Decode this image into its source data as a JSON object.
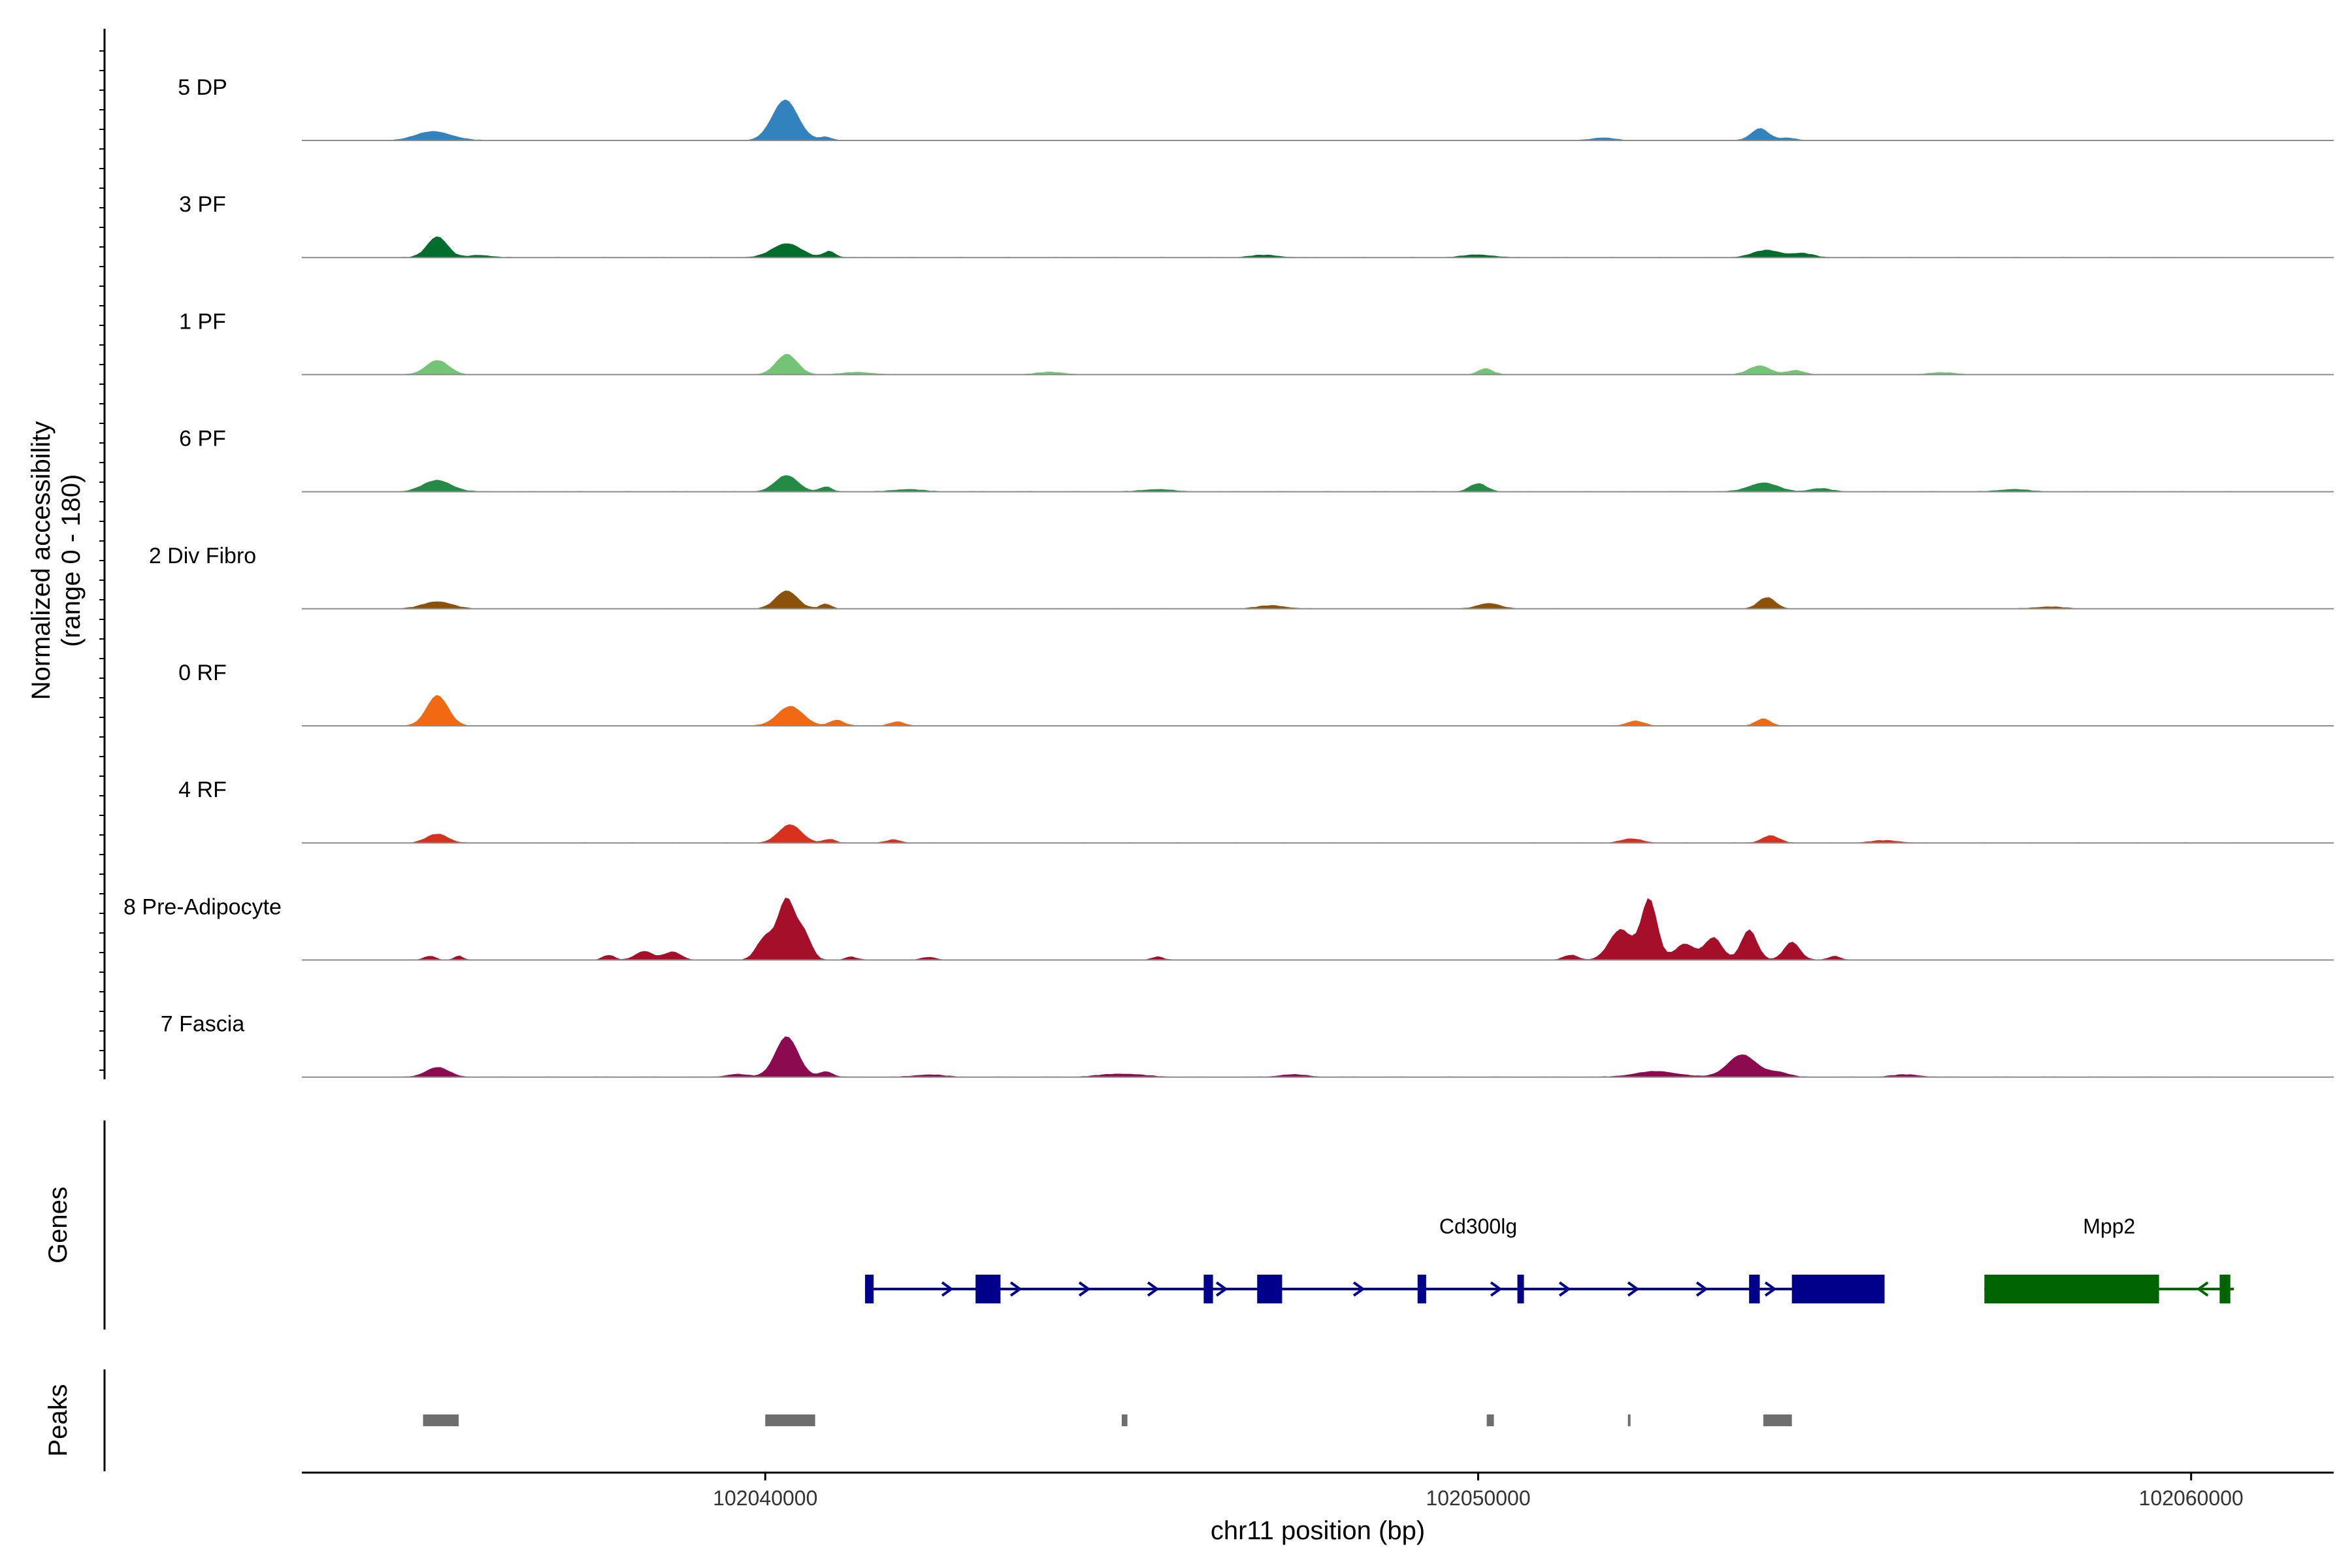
{
  "chart_data": {
    "type": "area",
    "title": "",
    "ylabel_line1": "Normalized accessibility",
    "ylabel_line2": "(range 0 - 180)",
    "y_range": [
      0,
      180
    ],
    "xlabel": "chr11 position (bp)",
    "xlim": [
      102033500,
      102062000
    ],
    "x_ticks": [
      102040000,
      102050000,
      102060000
    ],
    "x_tick_labels": [
      "102040000",
      "102050000",
      "102060000"
    ],
    "track_panel_label": "Genes",
    "peak_panel_label": "Peaks",
    "tracks": [
      {
        "name": "5 DP",
        "color": "#3182BD",
        "peaks": [
          [
            102035350,
            22,
            250
          ],
          [
            102040280,
            100,
            180
          ],
          [
            102040850,
            8,
            80
          ],
          [
            102051750,
            7,
            150
          ],
          [
            102053950,
            30,
            120
          ],
          [
            102054350,
            6,
            120
          ]
        ]
      },
      {
        "name": "3 PF",
        "color": "#006D2C",
        "peaks": [
          [
            102035400,
            52,
            140
          ],
          [
            102036000,
            6,
            150
          ],
          [
            102040300,
            35,
            200
          ],
          [
            102040900,
            16,
            80
          ],
          [
            102047000,
            6,
            200
          ],
          [
            102050000,
            7,
            200
          ],
          [
            102054050,
            18,
            200
          ],
          [
            102054550,
            10,
            150
          ]
        ]
      },
      {
        "name": "1 PF",
        "color": "#74C476",
        "peaks": [
          [
            102035400,
            35,
            160
          ],
          [
            102040300,
            50,
            150
          ],
          [
            102041300,
            6,
            200
          ],
          [
            102044000,
            6,
            200
          ],
          [
            102050100,
            15,
            100
          ],
          [
            102053950,
            22,
            150
          ],
          [
            102054450,
            10,
            120
          ],
          [
            102056500,
            5,
            200
          ]
        ]
      },
      {
        "name": "6 PF",
        "color": "#238B45",
        "peaks": [
          [
            102035400,
            28,
            200
          ],
          [
            102040300,
            40,
            160
          ],
          [
            102040850,
            12,
            80
          ],
          [
            102042000,
            6,
            200
          ],
          [
            102045500,
            6,
            200
          ],
          [
            102050000,
            20,
            120
          ],
          [
            102054000,
            22,
            200
          ],
          [
            102054800,
            8,
            150
          ],
          [
            102057500,
            6,
            200
          ]
        ]
      },
      {
        "name": "2 Div Fibro",
        "color": "#8C510A",
        "peaks": [
          [
            102035400,
            18,
            200
          ],
          [
            102040300,
            45,
            150
          ],
          [
            102040850,
            12,
            80
          ],
          [
            102047100,
            8,
            200
          ],
          [
            102050150,
            14,
            150
          ],
          [
            102054050,
            28,
            120
          ],
          [
            102058000,
            5,
            200
          ]
        ]
      },
      {
        "name": "0 RF",
        "color": "#F16913",
        "peaks": [
          [
            102035400,
            75,
            150
          ],
          [
            102040350,
            48,
            180
          ],
          [
            102041000,
            14,
            100
          ],
          [
            102041850,
            10,
            100
          ],
          [
            102052200,
            12,
            120
          ],
          [
            102054000,
            18,
            100
          ]
        ]
      },
      {
        "name": "4 RF",
        "color": "#D7301F",
        "peaks": [
          [
            102035400,
            22,
            150
          ],
          [
            102040350,
            45,
            160
          ],
          [
            102040900,
            9,
            80
          ],
          [
            102041800,
            8,
            100
          ],
          [
            102052150,
            10,
            150
          ],
          [
            102054100,
            18,
            120
          ],
          [
            102055700,
            6,
            200
          ]
        ]
      },
      {
        "name": "8 Pre-Adipocyte",
        "color": "#A50F2A",
        "peaks": [
          [
            102035300,
            10,
            80
          ],
          [
            102035700,
            10,
            60
          ],
          [
            102037800,
            12,
            80
          ],
          [
            102038300,
            22,
            120
          ],
          [
            102038700,
            20,
            120
          ],
          [
            102040000,
            55,
            120
          ],
          [
            102040300,
            150,
            120
          ],
          [
            102040550,
            60,
            100
          ],
          [
            102041200,
            8,
            80
          ],
          [
            102042300,
            7,
            100
          ],
          [
            102045500,
            8,
            80
          ],
          [
            102051300,
            12,
            100
          ],
          [
            102052000,
            75,
            160
          ],
          [
            102052400,
            150,
            110
          ],
          [
            102052900,
            40,
            140
          ],
          [
            102053300,
            55,
            120
          ],
          [
            102053800,
            75,
            110
          ],
          [
            102054400,
            45,
            110
          ],
          [
            102055000,
            10,
            80
          ]
        ]
      },
      {
        "name": "7 Fascia",
        "color": "#8B0A50",
        "peaks": [
          [
            102035400,
            24,
            160
          ],
          [
            102039600,
            7,
            150
          ],
          [
            102040300,
            100,
            160
          ],
          [
            102040850,
            14,
            90
          ],
          [
            102042300,
            6,
            200
          ],
          [
            102045000,
            8,
            300
          ],
          [
            102047400,
            6,
            200
          ],
          [
            102052500,
            14,
            300
          ],
          [
            102053700,
            55,
            200
          ],
          [
            102054200,
            12,
            150
          ],
          [
            102056000,
            6,
            200
          ]
        ]
      }
    ],
    "genes": [
      {
        "name": "Cd300lg",
        "color": "#00008B",
        "strand": "+",
        "start": 102041400,
        "end": 102055700,
        "exons": [
          [
            102041400,
            102041520
          ],
          [
            102042950,
            102043300
          ],
          [
            102046150,
            102046280
          ],
          [
            102046900,
            102047250
          ],
          [
            102049150,
            102049270
          ],
          [
            102050550,
            102050620
          ],
          [
            102053800,
            102053950
          ],
          [
            102054400,
            102055700
          ]
        ]
      },
      {
        "name": "Mpp2",
        "color": "#006400",
        "strand": "-",
        "start": 102057100,
        "end": 102060600,
        "exons": [
          [
            102057100,
            102059550
          ],
          [
            102060400,
            102060550
          ]
        ]
      }
    ],
    "peak_regions": [
      [
        102035200,
        102035700
      ],
      [
        102040000,
        102040700
      ],
      [
        102045000,
        102045080
      ],
      [
        102050120,
        102050220
      ],
      [
        102052100,
        102052130
      ],
      [
        102054000,
        102054400
      ]
    ]
  }
}
